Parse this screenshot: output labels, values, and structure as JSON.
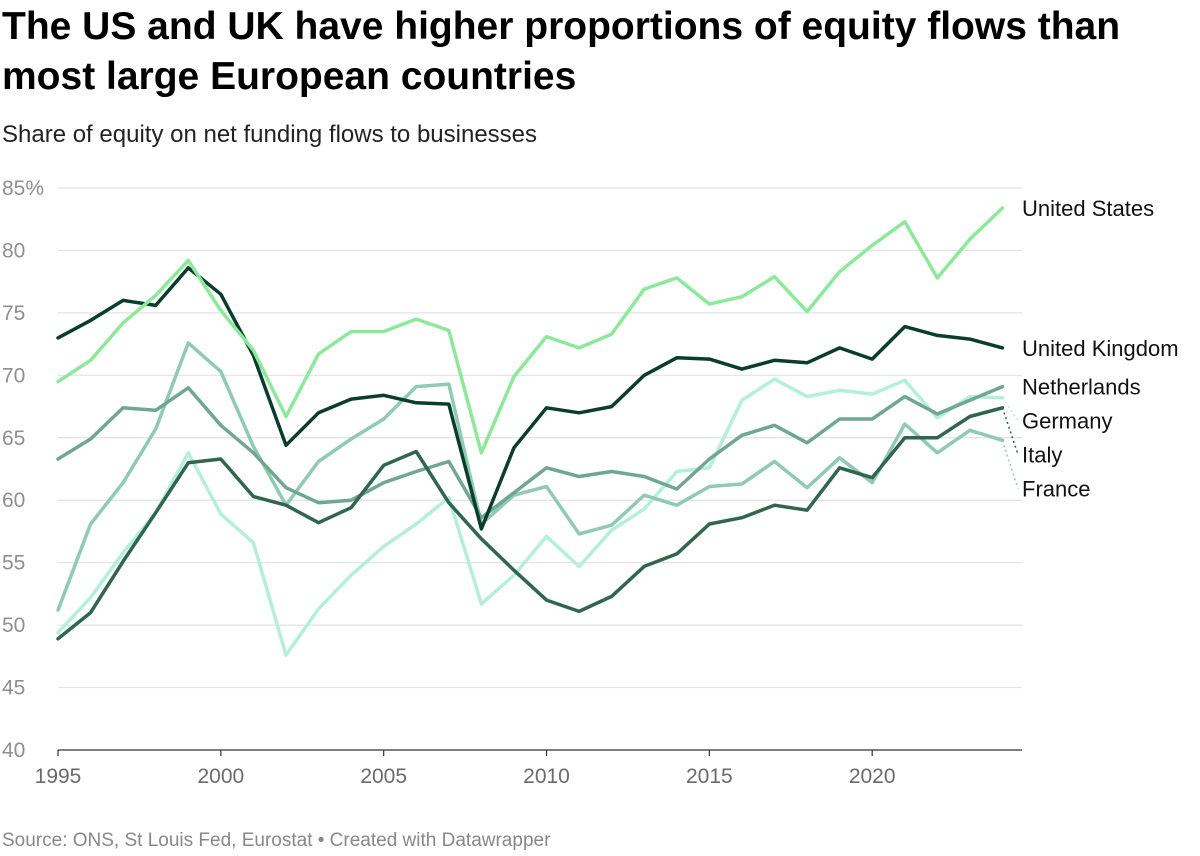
{
  "header": {
    "title": "The US and UK have higher proportions of equity flows than most large European countries",
    "subtitle": "Share of equity on net funding flows to businesses"
  },
  "footer": {
    "source": "Source: ONS, St Louis Fed, Eurostat • Created with Datawrapper"
  },
  "chart_data": {
    "type": "line",
    "title": "The US and UK have higher proportions of equity flows than most large European countries",
    "subtitle": "Share of equity on net funding flows to businesses",
    "xlabel": "",
    "ylabel": "",
    "x": [
      1995,
      1996,
      1997,
      1998,
      1999,
      2000,
      2001,
      2002,
      2003,
      2004,
      2005,
      2006,
      2007,
      2008,
      2009,
      2010,
      2011,
      2012,
      2013,
      2014,
      2015,
      2016,
      2017,
      2018,
      2019,
      2020,
      2021,
      2022,
      2023,
      2024
    ],
    "xlim": [
      1995,
      2024.6
    ],
    "ylim": [
      40,
      85
    ],
    "yticks": [
      40,
      45,
      50,
      55,
      60,
      65,
      70,
      75,
      80,
      85
    ],
    "ytick_labels": [
      "40",
      "45",
      "50",
      "55",
      "60",
      "65",
      "70",
      "75",
      "80",
      "85%"
    ],
    "xticks": [
      1995,
      2000,
      2005,
      2010,
      2015,
      2020
    ],
    "xtick_labels": [
      "1995",
      "2000",
      "2005",
      "2010",
      "2015",
      "2020"
    ],
    "grid": true,
    "legend": "direct labels at line ends (right)",
    "series": [
      {
        "name": "Germany",
        "color": "#b3efdb",
        "values": [
          49.4,
          52.2,
          55.8,
          59.0,
          63.8,
          58.9,
          56.6,
          47.6,
          51.3,
          54.0,
          56.3,
          58.1,
          60.2,
          51.7,
          54.0,
          57.1,
          54.7,
          57.6,
          59.3,
          62.3,
          62.6,
          68.0,
          69.7,
          68.3,
          68.8,
          68.5,
          69.6,
          66.6,
          68.3,
          68.2
        ]
      },
      {
        "name": "France",
        "color": "#8fcbb4",
        "values": [
          51.2,
          58.1,
          61.4,
          65.7,
          72.6,
          70.3,
          64.3,
          59.6,
          63.1,
          64.9,
          66.5,
          69.1,
          69.3,
          58.1,
          60.4,
          61.1,
          57.3,
          58.0,
          60.4,
          59.6,
          61.1,
          61.3,
          63.1,
          61.0,
          63.4,
          61.4,
          66.1,
          63.8,
          65.6,
          64.8
        ]
      },
      {
        "name": "Netherlands",
        "color": "#6fa791",
        "values": [
          63.3,
          64.9,
          67.4,
          67.2,
          69.0,
          66.0,
          63.8,
          61.0,
          59.8,
          60.0,
          61.4,
          62.3,
          63.1,
          58.6,
          60.6,
          62.6,
          61.9,
          62.3,
          61.9,
          60.9,
          63.3,
          65.2,
          66.0,
          64.6,
          66.5,
          66.5,
          68.3,
          66.9,
          68.0,
          69.1
        ]
      },
      {
        "name": "Italy",
        "color": "#30654e",
        "values": [
          48.9,
          51.0,
          55.1,
          59.0,
          63.0,
          63.3,
          60.3,
          59.6,
          58.2,
          59.4,
          62.8,
          63.9,
          59.8,
          56.9,
          54.4,
          52.0,
          51.1,
          52.3,
          54.7,
          55.7,
          58.1,
          58.6,
          59.6,
          59.2,
          62.6,
          61.8,
          65.0,
          65.0,
          66.7,
          67.4
        ]
      },
      {
        "name": "United Kingdom",
        "color": "#0b3d2c",
        "values": [
          73.0,
          74.4,
          76.0,
          75.6,
          78.6,
          76.5,
          71.6,
          64.4,
          67.0,
          68.1,
          68.4,
          67.8,
          67.7,
          57.7,
          64.2,
          67.4,
          67.0,
          67.5,
          70.0,
          71.4,
          71.3,
          70.5,
          71.2,
          71.0,
          72.2,
          71.3,
          73.9,
          73.2,
          72.9,
          72.2
        ]
      },
      {
        "name": "United States",
        "color": "#8ce99a",
        "values": [
          69.5,
          71.2,
          74.2,
          76.4,
          79.2,
          75.2,
          72.0,
          66.7,
          71.7,
          73.5,
          73.5,
          74.5,
          73.6,
          63.8,
          69.9,
          73.1,
          72.2,
          73.3,
          76.9,
          77.8,
          75.7,
          76.3,
          77.9,
          75.1,
          78.3,
          80.4,
          82.3,
          77.8,
          80.9,
          83.4
        ]
      }
    ]
  }
}
